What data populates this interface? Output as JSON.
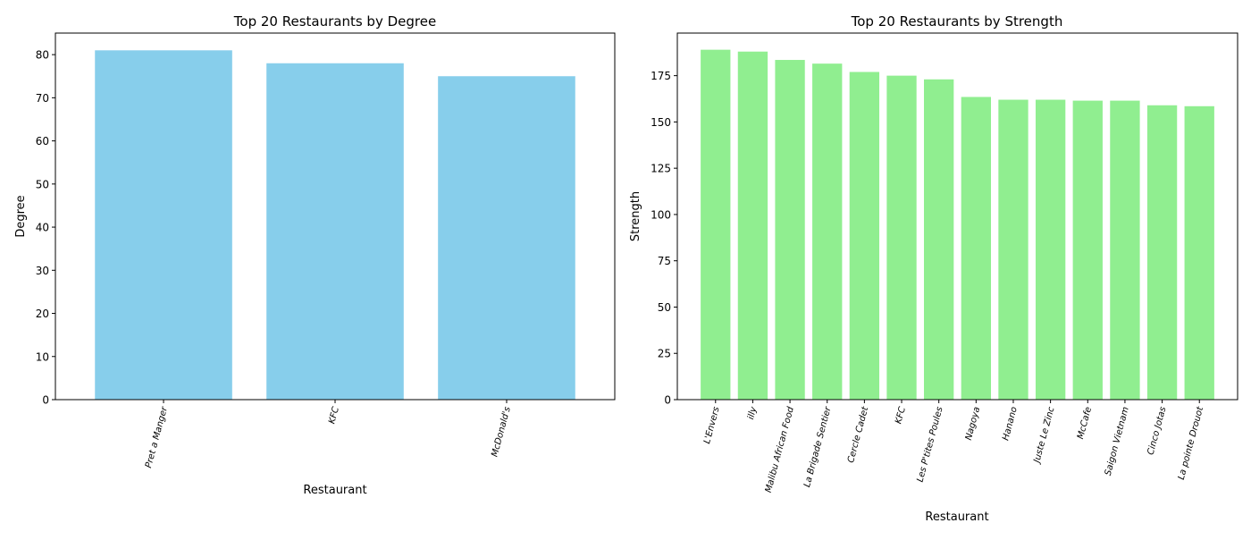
{
  "chart_data": [
    {
      "type": "bar",
      "title": "Top 20 Restaurants by Degree",
      "xlabel": "Restaurant",
      "ylabel": "Degree",
      "categories": [
        "Pret a Manger",
        "KFC",
        "McDonald's"
      ],
      "values": [
        81,
        78,
        75
      ],
      "ylim": [
        0,
        85
      ],
      "yticks": [
        0,
        10,
        20,
        30,
        40,
        50,
        60,
        70,
        80
      ],
      "color": "#87ceeb",
      "grid": false,
      "legend": false
    },
    {
      "type": "bar",
      "title": "Top 20 Restaurants by Strength",
      "xlabel": "Restaurant",
      "ylabel": "Strength",
      "categories": [
        "L'Envers",
        "illy",
        "Malibu African Food",
        "La Brigade Sentier",
        "Cercle Cadet",
        "KFC",
        "Les P'tites Poules",
        "Nagoya",
        "Hanano",
        "Juste Le Zinc",
        "McCafe",
        "Saigon Vietnam",
        "Cinco Jotas",
        "La pointe Drouot"
      ],
      "values": [
        189,
        188,
        183.5,
        181.5,
        177,
        175,
        173,
        163.5,
        162,
        162,
        161.5,
        161.5,
        159,
        158.5
      ],
      "ylim": [
        0,
        198
      ],
      "yticks": [
        0,
        25,
        50,
        75,
        100,
        125,
        150,
        175
      ],
      "color": "#90ee90",
      "grid": false,
      "legend": false
    }
  ]
}
